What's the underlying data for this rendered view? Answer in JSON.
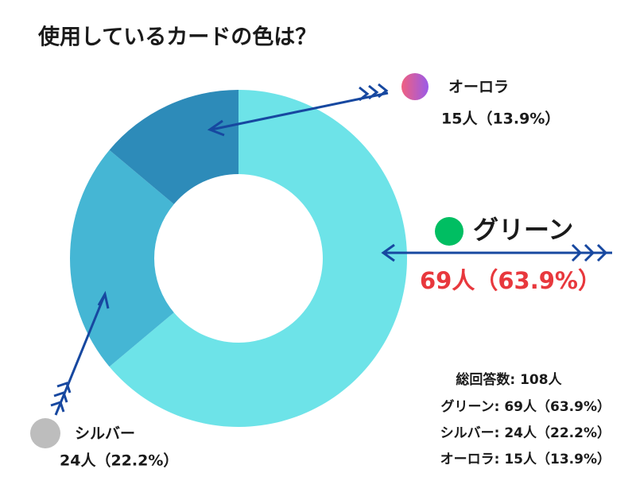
{
  "chart_data": {
    "type": "donut",
    "title": "使用しているカードの色は？",
    "categories": [
      "グリーン",
      "シルバー",
      "オーロラ"
    ],
    "values": [
      69,
      24,
      15
    ],
    "value_labels": [
      "69人（63.9%）",
      "24人（22.2%）",
      "15人（13.9%）"
    ],
    "colors": [
      "#6de3e8",
      "#45b6d4",
      "#2d8bb9"
    ],
    "legend_colors": [
      "#00be62",
      "#bdbdbd",
      "#c660d8"
    ],
    "total_label": "総回答数: 108人",
    "summary_lines": [
      "グリーン: 69人（63.9%）",
      "シルバー: 24人（22.2%）",
      "オーロラ: 15人（13.9%）"
    ]
  }
}
